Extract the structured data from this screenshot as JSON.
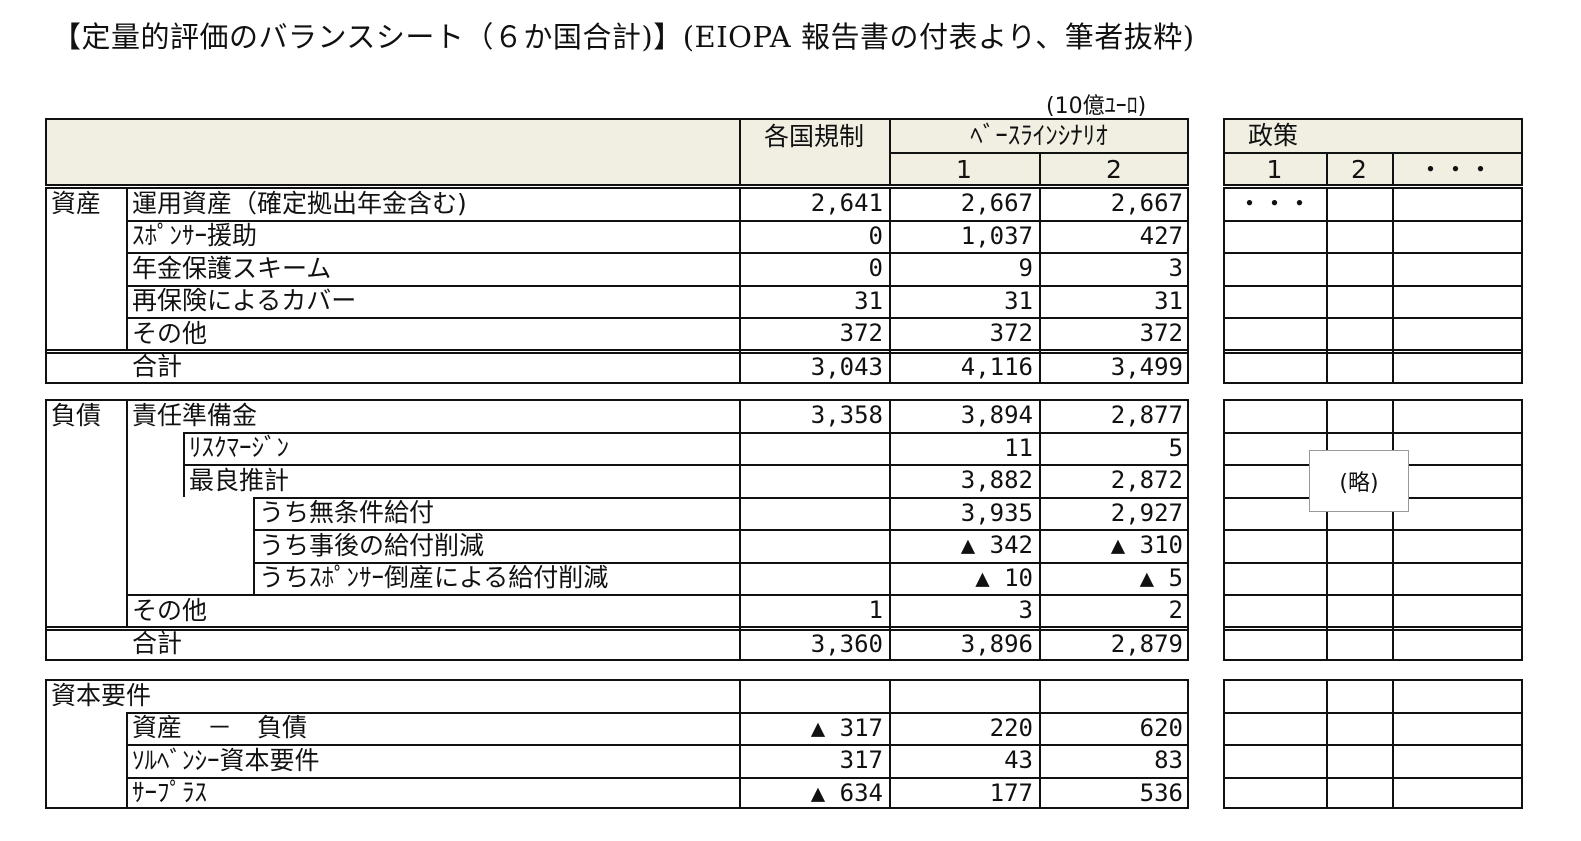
{
  "title": "【定量的評価のバランスシート（６か国合計)】(EIOPA 報告書の付表より、筆者抜粋)",
  "unit": "(10億ﾕｰﾛ)",
  "header": {
    "kakkoku": "各国規制",
    "baseline": "ﾍﾞｰｽﾗｲﾝｼﾅﾘｵ",
    "b1": "1",
    "b2": "2",
    "policy": "政策",
    "p1": "1",
    "p2": "2",
    "pdots": "・・・",
    "pdots_row": "・・・"
  },
  "assets": {
    "section": "資産",
    "rows": [
      {
        "label": "運用資産（確定拠出年金含む)",
        "v": [
          "2,641",
          "2,667",
          "2,667"
        ]
      },
      {
        "label": "ｽﾎﾟﾝｻｰ援助",
        "v": [
          "0",
          "1,037",
          "427"
        ]
      },
      {
        "label": "年金保護スキーム",
        "v": [
          "0",
          "9",
          "3"
        ]
      },
      {
        "label": "再保険によるカバー",
        "v": [
          "31",
          "31",
          "31"
        ]
      },
      {
        "label": "その他",
        "v": [
          "372",
          "372",
          "372"
        ]
      }
    ],
    "total": {
      "label": "合計",
      "v": [
        "3,043",
        "4,116",
        "3,499"
      ]
    }
  },
  "liabilities": {
    "section": "負債",
    "rows": [
      {
        "label": "責任準備金",
        "v": [
          "3,358",
          "3,894",
          "2,877"
        ]
      },
      {
        "label": "ﾘｽｸﾏｰｼﾞﾝ",
        "v": [
          "",
          "11",
          "5"
        ]
      },
      {
        "label": "最良推計",
        "v": [
          "",
          "3,882",
          "2,872"
        ]
      },
      {
        "label": "うち無条件給付",
        "v": [
          "",
          "3,935",
          "2,927"
        ]
      },
      {
        "label": "うち事後の給付削減",
        "v": [
          "",
          "▲ 342",
          "▲ 310"
        ]
      },
      {
        "label": "うちｽﾎﾟﾝｻｰ倒産による給付削減",
        "v": [
          "",
          "▲ 10",
          "▲ 5"
        ]
      },
      {
        "label": "その他",
        "v": [
          "1",
          "3",
          "2"
        ]
      }
    ],
    "total": {
      "label": "合計",
      "v": [
        "3,360",
        "3,896",
        "2,879"
      ]
    }
  },
  "capital": {
    "section": "資本要件",
    "rows": [
      {
        "label": "資産　－　負債",
        "v": [
          "▲ 317",
          "220",
          "620"
        ]
      },
      {
        "label": "ｿﾙﾍﾞﾝｼｰ資本要件",
        "v": [
          "317",
          "43",
          "83"
        ]
      },
      {
        "label": "ｻｰﾌﾟﾗｽ",
        "v": [
          "▲ 634",
          "177",
          "536"
        ]
      }
    ]
  },
  "ryaku": "(略)"
}
